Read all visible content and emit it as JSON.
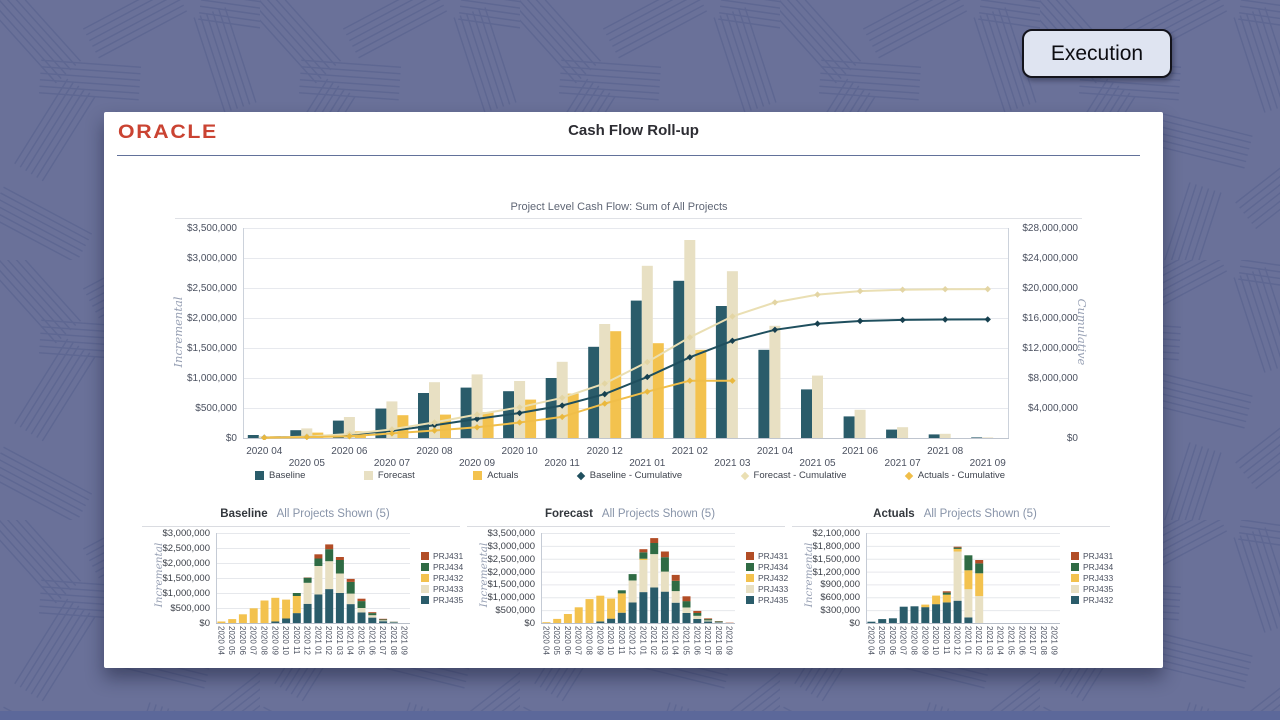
{
  "stage": {
    "execution_button": "Execution"
  },
  "header": {
    "brand": "ORACLE",
    "title": "Cash Flow Roll-up"
  },
  "palette": {
    "teal": "#2a5c6a",
    "beige": "#e8e0c3",
    "gold": "#f3c24e",
    "green": "#2f6b44",
    "rust": "#b24d26",
    "teal_line": "#1f4f5e",
    "beige_line": "#eadfb3",
    "gold_line": "#f0be49",
    "teal_mark": "#17404f",
    "beige_mark": "#e3d5a4",
    "gold_mark": "#e9b83e",
    "canvas_bg": "#6a7199",
    "pattern_line": "#5c6590"
  },
  "chart_data": [
    {
      "id": "main",
      "type": "bar+line",
      "title": "Project Level Cash Flow: Sum of All Projects",
      "ylabel_left": "Incremental",
      "ylabel_right": "Cumulative",
      "ylim_left": [
        0,
        3500000
      ],
      "ylim_right": [
        0,
        28000000
      ],
      "left_ticks": [
        {
          "l": "$3,500,000",
          "v": 3500000
        },
        {
          "l": "$3,000,000",
          "v": 3000000
        },
        {
          "l": "$2,500,000",
          "v": 2500000
        },
        {
          "l": "$2,000,000",
          "v": 2000000
        },
        {
          "l": "$1,500,000",
          "v": 1500000
        },
        {
          "l": "$1,000,000",
          "v": 1000000
        },
        {
          "l": "$500,000",
          "v": 500000
        },
        {
          "l": "$0",
          "v": 0
        }
      ],
      "right_ticks": [
        {
          "l": "$28,000,000",
          "v": 28000000
        },
        {
          "l": "$24,000,000",
          "v": 24000000
        },
        {
          "l": "$20,000,000",
          "v": 20000000
        },
        {
          "l": "$16,000,000",
          "v": 16000000
        },
        {
          "l": "$12,000,000",
          "v": 12000000
        },
        {
          "l": "$8,000,000",
          "v": 8000000
        },
        {
          "l": "$4,000,000",
          "v": 4000000
        },
        {
          "l": "$0",
          "v": 0
        }
      ],
      "categories": [
        "2020 04",
        "2020 05",
        "2020 06",
        "2020 07",
        "2020 08",
        "2020 09",
        "2020 10",
        "2020 11",
        "2020 12",
        "2021 01",
        "2021 02",
        "2021 03",
        "2021 04",
        "2021 05",
        "2021 06",
        "2021 07",
        "2021 08",
        "2021 09"
      ],
      "bar_series": [
        {
          "name": "Baseline",
          "color": "teal",
          "values": [
            50000,
            130000,
            290000,
            490000,
            750000,
            840000,
            780000,
            1000000,
            1520000,
            2290000,
            2620000,
            2200000,
            1470000,
            810000,
            360000,
            140000,
            60000,
            10000
          ]
        },
        {
          "name": "Forecast",
          "color": "beige",
          "values": [
            30000,
            160000,
            350000,
            610000,
            930000,
            1060000,
            950000,
            1270000,
            1900000,
            2870000,
            3300000,
            2780000,
            1870000,
            1040000,
            470000,
            180000,
            70000,
            10000
          ]
        },
        {
          "name": "Actuals",
          "color": "gold",
          "values": [
            30000,
            90000,
            110000,
            380000,
            390000,
            430000,
            640000,
            740000,
            1780000,
            1580000,
            1470000,
            null,
            null,
            null,
            null,
            null,
            null,
            null
          ]
        }
      ],
      "line_series": [
        {
          "name": "Baseline - Cumulative",
          "color": "teal_line",
          "marker": "teal_mark",
          "values": [
            50000,
            180000,
            470000,
            960000,
            1710000,
            2550000,
            3330000,
            4330000,
            5850000,
            8140000,
            10760000,
            12960000,
            14430000,
            15240000,
            15600000,
            15740000,
            15800000,
            15810000
          ]
        },
        {
          "name": "Forecast - Cumulative",
          "color": "beige_line",
          "marker": "beige_mark",
          "values": [
            30000,
            190000,
            540000,
            1150000,
            2080000,
            3140000,
            4090000,
            5360000,
            7260000,
            10130000,
            13430000,
            16210000,
            18080000,
            19120000,
            19590000,
            19770000,
            19840000,
            19850000
          ]
        },
        {
          "name": "Actuals - Cumulative",
          "color": "gold_line",
          "marker": "gold_mark",
          "values": [
            30000,
            120000,
            230000,
            610000,
            1000000,
            1430000,
            2070000,
            2810000,
            4590000,
            6170000,
            7640000,
            7640000,
            null,
            null,
            null,
            null,
            null,
            null
          ]
        }
      ],
      "legend": [
        {
          "label": "Baseline",
          "shape": "square",
          "color": "teal"
        },
        {
          "label": "Forecast",
          "shape": "square",
          "color": "beige"
        },
        {
          "label": "Actuals",
          "shape": "square",
          "color": "gold"
        },
        {
          "label": "Baseline - Cumulative",
          "shape": "diamond",
          "color": "teal_line"
        },
        {
          "label": "Forecast - Cumulative",
          "shape": "diamond",
          "color": "beige_line"
        },
        {
          "label": "Actuals - Cumulative",
          "shape": "diamond",
          "color": "gold_line"
        }
      ]
    },
    {
      "id": "baseline",
      "type": "stacked-bar",
      "title": "Baseline",
      "subtitle": "All Projects Shown (5)",
      "ylabel": "Incremental",
      "ylim": [
        0,
        3000000
      ],
      "yticks": [
        {
          "l": "$3,000,000",
          "v": 3000000
        },
        {
          "l": "$2,500,000",
          "v": 2500000
        },
        {
          "l": "$2,000,000",
          "v": 2000000
        },
        {
          "l": "$1,500,000",
          "v": 1500000
        },
        {
          "l": "$1,000,000",
          "v": 1000000
        },
        {
          "l": "$500,000",
          "v": 500000
        },
        {
          "l": "$0",
          "v": 0
        }
      ],
      "categories": [
        "2020 04",
        "2020 05",
        "2020 06",
        "2020 07",
        "2020 08",
        "2020 09",
        "2020 10",
        "2020 11",
        "2020 12",
        "2021 01",
        "2021 02",
        "2021 03",
        "2021 04",
        "2021 05",
        "2021 06",
        "2021 07",
        "2021 08",
        "2021 09"
      ],
      "series": [
        {
          "name": "PRJ435",
          "color": "teal",
          "values": [
            0,
            0,
            0,
            0,
            0,
            50000,
            150000,
            330000,
            640000,
            950000,
            1130000,
            1000000,
            630000,
            350000,
            180000,
            60000,
            20000,
            0
          ]
        },
        {
          "name": "PRJ433",
          "color": "beige",
          "values": [
            0,
            0,
            0,
            0,
            0,
            0,
            0,
            0,
            700000,
            950000,
            930000,
            650000,
            350000,
            150000,
            80000,
            30000,
            10000,
            0
          ]
        },
        {
          "name": "PRJ432",
          "color": "gold",
          "values": [
            50000,
            130000,
            290000,
            490000,
            750000,
            790000,
            630000,
            570000,
            0,
            0,
            0,
            0,
            0,
            0,
            0,
            0,
            0,
            0
          ]
        },
        {
          "name": "PRJ434",
          "color": "green",
          "values": [
            0,
            0,
            0,
            0,
            0,
            0,
            0,
            100000,
            170000,
            250000,
            400000,
            450000,
            390000,
            230000,
            70000,
            30000,
            10000,
            0
          ]
        },
        {
          "name": "PRJ431",
          "color": "rust",
          "values": [
            0,
            0,
            0,
            0,
            0,
            0,
            0,
            0,
            10000,
            140000,
            160000,
            100000,
            100000,
            80000,
            30000,
            20000,
            5000,
            0
          ]
        }
      ],
      "legend": [
        {
          "label": "PRJ431",
          "color": "rust"
        },
        {
          "label": "PRJ434",
          "color": "green"
        },
        {
          "label": "PRJ432",
          "color": "gold"
        },
        {
          "label": "PRJ433",
          "color": "beige"
        },
        {
          "label": "PRJ435",
          "color": "teal"
        }
      ]
    },
    {
      "id": "forecast",
      "type": "stacked-bar",
      "title": "Forecast",
      "subtitle": "All Projects Shown (5)",
      "ylabel": "Incremental",
      "ylim": [
        0,
        3500000
      ],
      "yticks": [
        {
          "l": "$3,500,000",
          "v": 3500000
        },
        {
          "l": "$3,000,000",
          "v": 3000000
        },
        {
          "l": "$2,500,000",
          "v": 2500000
        },
        {
          "l": "$2,000,000",
          "v": 2000000
        },
        {
          "l": "$1,500,000",
          "v": 1500000
        },
        {
          "l": "$1,000,000",
          "v": 1000000
        },
        {
          "l": "$500,000",
          "v": 500000
        },
        {
          "l": "$0",
          "v": 0
        }
      ],
      "categories": [
        "2020 04",
        "2020 05",
        "2020 06",
        "2020 07",
        "2020 08",
        "2020 09",
        "2020 10",
        "2020 11",
        "2020 12",
        "2021 01",
        "2021 02",
        "2021 03",
        "2021 04",
        "2021 05",
        "2021 06",
        "2021 07",
        "2021 08",
        "2021 09"
      ],
      "series": [
        {
          "name": "PRJ435",
          "color": "teal",
          "values": [
            0,
            0,
            0,
            0,
            0,
            60000,
            170000,
            400000,
            800000,
            1200000,
            1380000,
            1220000,
            790000,
            390000,
            160000,
            60000,
            25000,
            0
          ]
        },
        {
          "name": "PRJ433",
          "color": "beige",
          "values": [
            0,
            0,
            0,
            0,
            0,
            0,
            0,
            0,
            850000,
            1250000,
            1300000,
            780000,
            450000,
            210000,
            120000,
            40000,
            15000,
            0
          ]
        },
        {
          "name": "PRJ432",
          "color": "gold",
          "values": [
            30000,
            160000,
            350000,
            610000,
            930000,
            1000000,
            780000,
            750000,
            0,
            50000,
            0,
            0,
            0,
            0,
            0,
            0,
            0,
            0
          ]
        },
        {
          "name": "PRJ434",
          "color": "green",
          "values": [
            0,
            0,
            0,
            0,
            0,
            0,
            0,
            120000,
            250000,
            250000,
            430000,
            560000,
            400000,
            250000,
            110000,
            50000,
            20000,
            0
          ]
        },
        {
          "name": "PRJ431",
          "color": "rust",
          "values": [
            0,
            0,
            0,
            0,
            0,
            0,
            0,
            0,
            0,
            120000,
            190000,
            220000,
            230000,
            190000,
            80000,
            30000,
            10000,
            10000
          ]
        }
      ],
      "legend": [
        {
          "label": "PRJ431",
          "color": "rust"
        },
        {
          "label": "PRJ434",
          "color": "green"
        },
        {
          "label": "PRJ432",
          "color": "gold"
        },
        {
          "label": "PRJ433",
          "color": "beige"
        },
        {
          "label": "PRJ435",
          "color": "teal"
        }
      ]
    },
    {
      "id": "actuals",
      "type": "stacked-bar",
      "title": "Actuals",
      "subtitle": "All Projects Shown (5)",
      "ylabel": "Incremental",
      "ylim": [
        0,
        2100000
      ],
      "yticks": [
        {
          "l": "$2,100,000",
          "v": 2100000
        },
        {
          "l": "$1,800,000",
          "v": 1800000
        },
        {
          "l": "$1,500,000",
          "v": 1500000
        },
        {
          "l": "$1,200,000",
          "v": 1200000
        },
        {
          "l": "$900,000",
          "v": 900000
        },
        {
          "l": "$600,000",
          "v": 600000
        },
        {
          "l": "$300,000",
          "v": 300000
        },
        {
          "l": "$0",
          "v": 0
        }
      ],
      "categories": [
        "2020 04",
        "2020 05",
        "2020 06",
        "2020 07",
        "2020 08",
        "2020 09",
        "2020 10",
        "2020 11",
        "2020 12",
        "2021 01",
        "2021 02",
        "2021 03",
        "2021 04",
        "2021 05",
        "2021 06",
        "2021 07",
        "2021 08",
        "2021 09"
      ],
      "series": [
        {
          "name": "PRJ432",
          "color": "teal",
          "values": [
            30000,
            90000,
            110000,
            380000,
            390000,
            370000,
            440000,
            480000,
            520000,
            130000,
            0,
            0,
            0,
            0,
            0,
            0,
            0,
            0
          ]
        },
        {
          "name": "PRJ435",
          "color": "beige",
          "values": [
            0,
            0,
            0,
            0,
            0,
            0,
            0,
            0,
            1150000,
            660000,
            630000,
            0,
            0,
            0,
            0,
            0,
            0,
            0
          ]
        },
        {
          "name": "PRJ433",
          "color": "gold",
          "values": [
            0,
            0,
            0,
            0,
            0,
            60000,
            200000,
            180000,
            60000,
            440000,
            530000,
            0,
            0,
            0,
            0,
            0,
            0,
            0
          ]
        },
        {
          "name": "PRJ434",
          "color": "green",
          "values": [
            0,
            0,
            0,
            0,
            0,
            0,
            0,
            50000,
            30000,
            350000,
            230000,
            0,
            0,
            0,
            0,
            0,
            0,
            0
          ]
        },
        {
          "name": "PRJ431",
          "color": "rust",
          "values": [
            0,
            0,
            0,
            0,
            0,
            0,
            0,
            30000,
            20000,
            0,
            80000,
            0,
            0,
            0,
            0,
            0,
            0,
            0
          ]
        }
      ],
      "legend": [
        {
          "label": "PRJ431",
          "color": "rust"
        },
        {
          "label": "PRJ434",
          "color": "green"
        },
        {
          "label": "PRJ433",
          "color": "gold"
        },
        {
          "label": "PRJ435",
          "color": "beige"
        },
        {
          "label": "PRJ432",
          "color": "teal"
        }
      ]
    }
  ]
}
